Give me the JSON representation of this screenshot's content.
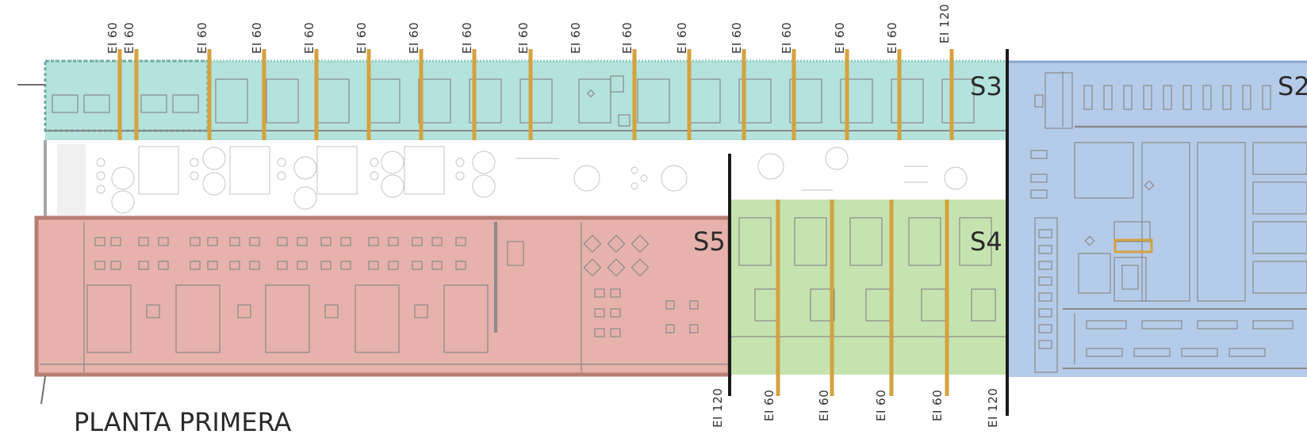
{
  "title": "PLANTA PRIMERA",
  "colors": {
    "s1": "#a8c2e6",
    "s2_border": "#8aa6d4",
    "s3": "#a7ddd6",
    "s4": "#bfe0a6",
    "s5": "#e3aaa2",
    "s5_border": "#b77e75",
    "barrier": "#d4a23e",
    "wall_black": "#1a1a1a"
  },
  "sectors": [
    {
      "id": "S2",
      "label": "S2"
    },
    {
      "id": "S3",
      "label": "S3"
    },
    {
      "id": "S4",
      "label": "S4"
    },
    {
      "id": "S5",
      "label": "S5"
    }
  ],
  "top_ratings": [
    "EI 60",
    "EI 60",
    "EI 60",
    "EI 60",
    "EI 60",
    "EI 60",
    "EI 60",
    "EI 60",
    "EI 60",
    "EI 60",
    "EI 60",
    "EI 60",
    "EI 60",
    "EI 60",
    "EI 60",
    "EI 60",
    "EI 120"
  ],
  "bottom_ratings": [
    "EI 120",
    "EI 60",
    "EI 60",
    "EI 60",
    "EI 60",
    "EI 120"
  ]
}
